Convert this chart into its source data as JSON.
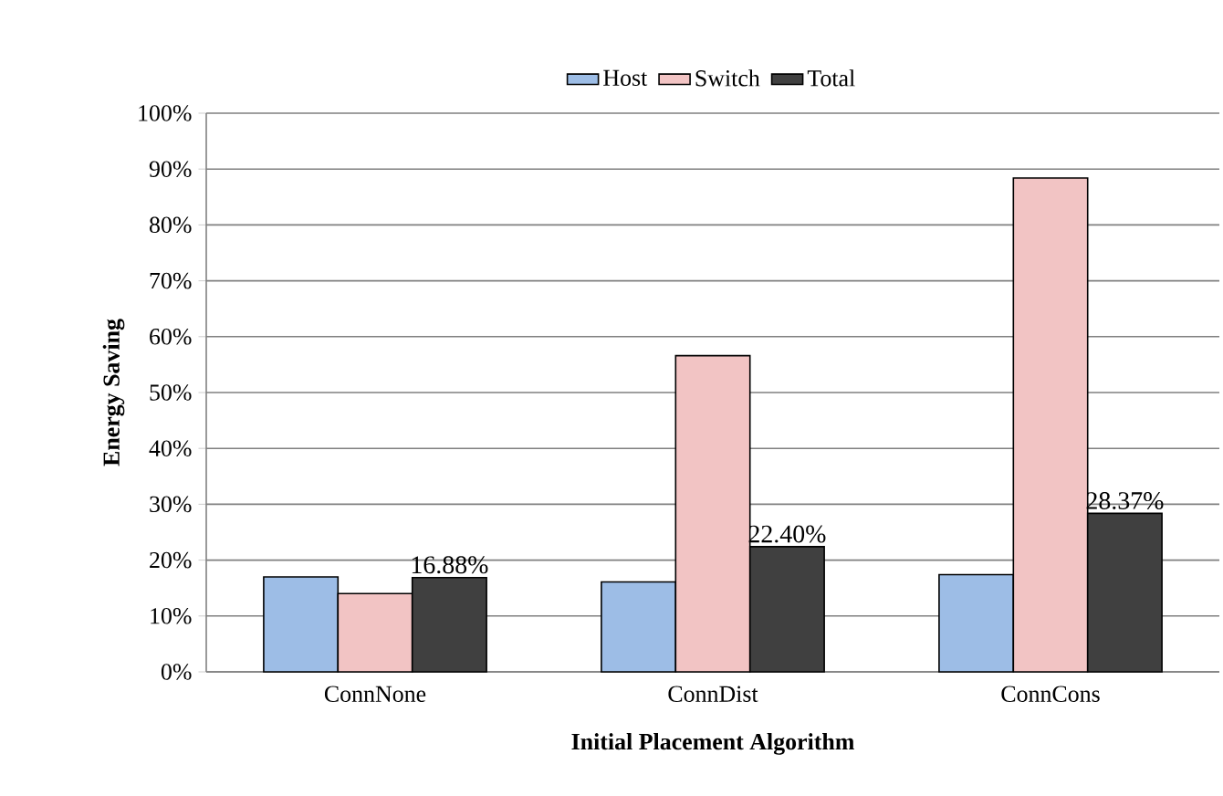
{
  "chart_data": {
    "type": "bar",
    "xlabel": "Initial Placement Algorithm",
    "ylabel": "Energy Saving",
    "categories": [
      "ConnNone",
      "ConnDist",
      "ConnCons"
    ],
    "series": [
      {
        "name": "Host",
        "color": "#9dbde6",
        "values": [
          17.0,
          16.1,
          17.4
        ]
      },
      {
        "name": "Switch",
        "color": "#f2c4c4",
        "values": [
          14.0,
          56.6,
          88.4
        ]
      },
      {
        "name": "Total",
        "color": "#404040",
        "values": [
          16.88,
          22.4,
          28.37
        ],
        "value_labels": [
          "16.88%",
          "22.40%",
          "28.37%"
        ]
      }
    ],
    "ylim": [
      0,
      100
    ],
    "yticks": [
      {
        "value": 0,
        "label": "0%"
      },
      {
        "value": 10,
        "label": "10%"
      },
      {
        "value": 20,
        "label": "20%"
      },
      {
        "value": 30,
        "label": "30%"
      },
      {
        "value": 40,
        "label": "40%"
      },
      {
        "value": 50,
        "label": "50%"
      },
      {
        "value": 60,
        "label": "60%"
      },
      {
        "value": 70,
        "label": "70%"
      },
      {
        "value": 80,
        "label": "80%"
      },
      {
        "value": 90,
        "label": "90%"
      },
      {
        "value": 100,
        "label": "100%"
      }
    ],
    "grid": "y",
    "legend": "top"
  }
}
